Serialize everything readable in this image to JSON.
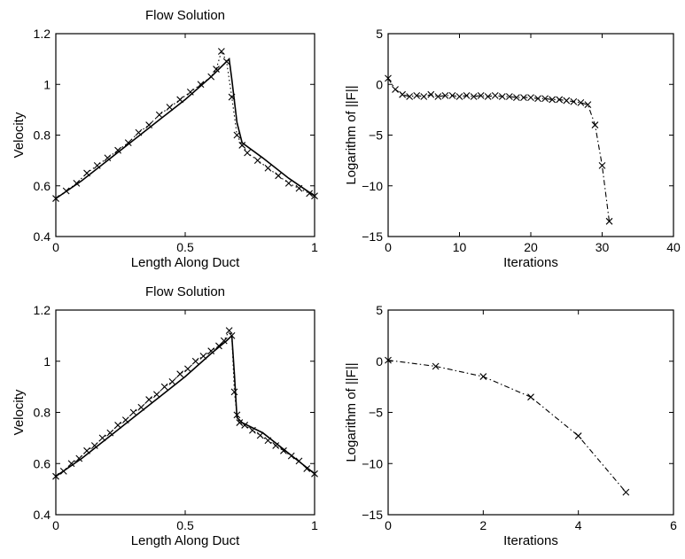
{
  "chart_data": [
    {
      "type": "line",
      "title": "Flow Solution",
      "xlabel": "Length Along Duct",
      "ylabel": "Velocity",
      "xlim": [
        0,
        1
      ],
      "ylim": [
        0.4,
        1.2
      ],
      "xticks": [
        0,
        0.5,
        1
      ],
      "yticks": [
        0.4,
        0.6,
        0.8,
        1,
        1.2
      ],
      "xtick_labels": [
        "0",
        "0.5",
        "1"
      ],
      "ytick_labels": [
        "0.4",
        "0.6",
        "0.8",
        "1",
        "1.2"
      ],
      "grid": false,
      "series": [
        {
          "style": "solid",
          "x": [
            0,
            0.1,
            0.2,
            0.3,
            0.4,
            0.5,
            0.6,
            0.65,
            0.67,
            0.68,
            0.7,
            0.72,
            0.8,
            0.9,
            1.0
          ],
          "y": [
            0.55,
            0.62,
            0.7,
            0.78,
            0.86,
            0.94,
            1.03,
            1.08,
            1.1,
            1.02,
            0.85,
            0.77,
            0.71,
            0.63,
            0.56
          ]
        },
        {
          "style": "dotted",
          "marker": "x",
          "x": [
            0,
            0.04,
            0.08,
            0.12,
            0.16,
            0.2,
            0.24,
            0.28,
            0.32,
            0.36,
            0.4,
            0.44,
            0.48,
            0.52,
            0.56,
            0.6,
            0.62,
            0.64,
            0.66,
            0.68,
            0.7,
            0.72,
            0.74,
            0.78,
            0.82,
            0.86,
            0.9,
            0.94,
            0.98,
            1.0
          ],
          "y": [
            0.55,
            0.58,
            0.61,
            0.65,
            0.68,
            0.71,
            0.74,
            0.77,
            0.81,
            0.84,
            0.88,
            0.91,
            0.94,
            0.97,
            1.0,
            1.03,
            1.06,
            1.13,
            1.09,
            0.95,
            0.8,
            0.76,
            0.73,
            0.7,
            0.67,
            0.64,
            0.61,
            0.59,
            0.57,
            0.56
          ]
        }
      ]
    },
    {
      "type": "line",
      "title": "",
      "xlabel": "Iterations",
      "ylabel": "Logarithm of ||F||",
      "xlim": [
        0,
        40
      ],
      "ylim": [
        -15,
        5
      ],
      "xticks": [
        0,
        10,
        20,
        30,
        40
      ],
      "yticks": [
        -15,
        -10,
        -5,
        0,
        5
      ],
      "xtick_labels": [
        "0",
        "10",
        "20",
        "30",
        "40"
      ],
      "ytick_labels": [
        "−15",
        "−10",
        "−5",
        "0",
        "5"
      ],
      "grid": false,
      "series": [
        {
          "style": "dash-dot",
          "marker": "x",
          "x": [
            0,
            1,
            2,
            3,
            4,
            5,
            6,
            7,
            8,
            9,
            10,
            11,
            12,
            13,
            14,
            15,
            16,
            17,
            18,
            19,
            20,
            21,
            22,
            23,
            24,
            25,
            26,
            27,
            28,
            29,
            30,
            31
          ],
          "y": [
            0.6,
            -0.5,
            -1.0,
            -1.2,
            -1.1,
            -1.2,
            -1.0,
            -1.2,
            -1.1,
            -1.1,
            -1.2,
            -1.1,
            -1.2,
            -1.1,
            -1.2,
            -1.1,
            -1.2,
            -1.2,
            -1.3,
            -1.3,
            -1.3,
            -1.4,
            -1.4,
            -1.5,
            -1.5,
            -1.6,
            -1.7,
            -1.8,
            -2.0,
            -4.0,
            -8.0,
            -13.5
          ]
        }
      ]
    },
    {
      "type": "line",
      "title": "Flow Solution",
      "xlabel": "Length Along Duct",
      "ylabel": "Velocity",
      "xlim": [
        0,
        1
      ],
      "ylim": [
        0.4,
        1.2
      ],
      "xticks": [
        0,
        0.5,
        1
      ],
      "yticks": [
        0.4,
        0.6,
        0.8,
        1,
        1.2
      ],
      "xtick_labels": [
        "0",
        "0.5",
        "1"
      ],
      "ytick_labels": [
        "0.4",
        "0.6",
        "0.8",
        "1",
        "1.2"
      ],
      "grid": false,
      "series": [
        {
          "style": "solid",
          "x": [
            0,
            0.1,
            0.2,
            0.3,
            0.4,
            0.5,
            0.6,
            0.66,
            0.68,
            0.69,
            0.7,
            0.72,
            0.8,
            0.9,
            1.0
          ],
          "y": [
            0.55,
            0.62,
            0.7,
            0.78,
            0.86,
            0.94,
            1.03,
            1.08,
            1.1,
            0.95,
            0.78,
            0.76,
            0.72,
            0.64,
            0.56
          ]
        },
        {
          "style": "dotted",
          "marker": "x",
          "x": [
            0,
            0.03,
            0.06,
            0.09,
            0.12,
            0.15,
            0.18,
            0.21,
            0.24,
            0.27,
            0.3,
            0.33,
            0.36,
            0.39,
            0.42,
            0.45,
            0.48,
            0.51,
            0.54,
            0.57,
            0.6,
            0.63,
            0.65,
            0.67,
            0.68,
            0.69,
            0.7,
            0.71,
            0.73,
            0.76,
            0.79,
            0.82,
            0.85,
            0.88,
            0.91,
            0.94,
            0.97,
            1.0
          ],
          "y": [
            0.55,
            0.57,
            0.6,
            0.62,
            0.65,
            0.67,
            0.7,
            0.72,
            0.75,
            0.77,
            0.8,
            0.82,
            0.85,
            0.87,
            0.9,
            0.92,
            0.95,
            0.97,
            1.0,
            1.02,
            1.04,
            1.06,
            1.08,
            1.12,
            1.1,
            0.88,
            0.79,
            0.76,
            0.75,
            0.73,
            0.71,
            0.69,
            0.67,
            0.65,
            0.63,
            0.61,
            0.58,
            0.56
          ]
        }
      ]
    },
    {
      "type": "line",
      "title": "",
      "xlabel": "Iterations",
      "ylabel": "Logarithm of ||F||",
      "xlim": [
        0,
        6
      ],
      "ylim": [
        -15,
        5
      ],
      "xticks": [
        0,
        2,
        4,
        6
      ],
      "yticks": [
        -15,
        -10,
        -5,
        0,
        5
      ],
      "xtick_labels": [
        "0",
        "2",
        "4",
        "6"
      ],
      "ytick_labels": [
        "−15",
        "−10",
        "−5",
        "0",
        "5"
      ],
      "grid": false,
      "series": [
        {
          "style": "dash-dot",
          "marker": "x",
          "x": [
            0,
            1,
            2,
            3,
            4,
            5
          ],
          "y": [
            0.1,
            -0.5,
            -1.5,
            -3.5,
            -7.3,
            -12.8
          ]
        }
      ]
    }
  ]
}
